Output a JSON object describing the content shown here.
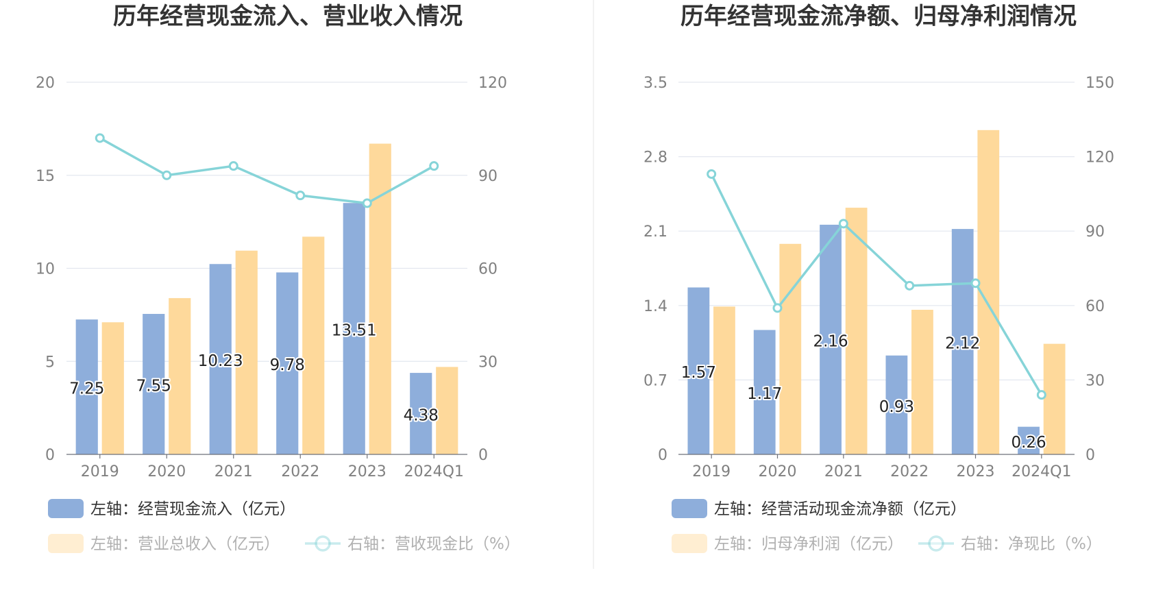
{
  "charts": [
    {
      "title": "历年经营现金流入、营业收入情况",
      "chart_data": {
        "type": "bar",
        "categories": [
          "2019",
          "2020",
          "2021",
          "2022",
          "2023",
          "2024Q1"
        ],
        "left_axis": {
          "min": 0,
          "max": 20,
          "ticks": [
            "0",
            "5",
            "10",
            "15",
            "20"
          ]
        },
        "right_axis": {
          "min": 0,
          "max": 120,
          "ticks": [
            "0",
            "30",
            "60",
            "90",
            "120"
          ]
        },
        "series": [
          {
            "name": "左轴：经营现金流入（亿元）",
            "type": "bar",
            "axis": "left",
            "color": "#8eaedb",
            "values": [
              7.25,
              7.55,
              10.23,
              9.78,
              13.51,
              4.38
            ],
            "labels": [
              "7.25",
              "7.55",
              "10.23",
              "9.78",
              "13.51",
              "4.38"
            ]
          },
          {
            "name": "左轴：营业总收入（亿元）",
            "type": "bar",
            "axis": "left",
            "color": "#fed99b",
            "values": [
              7.1,
              8.4,
              10.95,
              11.7,
              16.7,
              4.7
            ]
          },
          {
            "name": "右轴：营收现金比（%）",
            "type": "line",
            "axis": "right",
            "color": "#86d4d8",
            "values": [
              102,
              90,
              93,
              83.5,
              81,
              93
            ]
          }
        ],
        "grid": true,
        "legend_position": "bottom"
      }
    },
    {
      "title": "历年经营现金流净额、归母净利润情况",
      "chart_data": {
        "type": "bar",
        "categories": [
          "2019",
          "2020",
          "2021",
          "2022",
          "2023",
          "2024Q1"
        ],
        "left_axis": {
          "min": 0,
          "max": 3.5,
          "ticks": [
            "0",
            "0.7",
            "1.4",
            "2.1",
            "2.8",
            "3.5"
          ]
        },
        "right_axis": {
          "min": 0,
          "max": 150,
          "ticks": [
            "0",
            "30",
            "60",
            "90",
            "120",
            "150"
          ]
        },
        "series": [
          {
            "name": "左轴：经营活动现金流净额（亿元）",
            "type": "bar",
            "axis": "left",
            "color": "#8eaedb",
            "values": [
              1.57,
              1.17,
              2.16,
              0.93,
              2.12,
              0.26
            ],
            "labels": [
              "1.57",
              "1.17",
              "2.16",
              "0.93",
              "2.12",
              "0.26"
            ]
          },
          {
            "name": "左轴：归母净利润（亿元）",
            "type": "bar",
            "axis": "left",
            "color": "#fed99b",
            "values": [
              1.39,
              1.98,
              2.32,
              1.36,
              3.05,
              1.04
            ]
          },
          {
            "name": "右轴：净现比（%）",
            "type": "line",
            "axis": "right",
            "color": "#86d4d8",
            "values": [
              113,
              59,
              93,
              68,
              69,
              24
            ]
          }
        ],
        "grid": true,
        "legend_position": "bottom"
      }
    }
  ]
}
